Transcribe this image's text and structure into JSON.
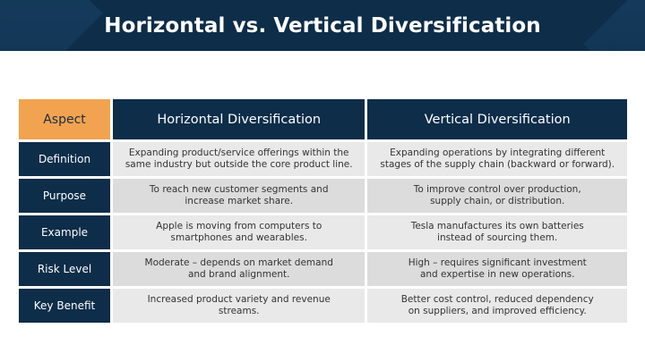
{
  "slide": {
    "title": "Horizontal vs. Vertical Diversification"
  },
  "table": {
    "headers": {
      "aspect": "Aspect",
      "horizontal": "Horizontal Diversification",
      "vertical": "Vertical Diversification"
    },
    "rows": [
      {
        "label": "Definition",
        "horizontal": "Expanding product/service offerings within the\nsame industry but outside the core product line.",
        "vertical": "Expanding operations by integrating different\nstages of the supply chain (backward or forward)."
      },
      {
        "label": "Purpose",
        "horizontal": "To reach new customer segments and\nincrease market share.",
        "vertical": "To improve control over production,\nsupply chain, or distribution."
      },
      {
        "label": "Example",
        "horizontal": "Apple is moving from computers to\nsmartphones and wearables.",
        "vertical": "Tesla manufactures its own batteries\ninstead of sourcing them."
      },
      {
        "label": "Risk Level",
        "horizontal": "Moderate – depends on market demand\nand brand alignment.",
        "vertical": "High – requires significant investment\nand expertise in new operations."
      },
      {
        "label": "Key Benefit",
        "horizontal": "Increased product variety and revenue\nstreams.",
        "vertical": "Better cost control, reduced dependency\non suppliers, and improved efficiency."
      }
    ]
  },
  "colors": {
    "navy": "#0d2d49",
    "orange": "#f2a350",
    "cell_gray": "#dcdcdc",
    "cell_light": "#e9e9e9"
  }
}
